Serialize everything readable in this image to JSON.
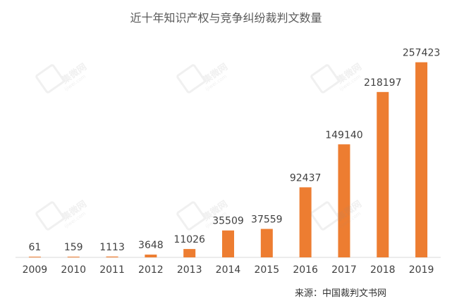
{
  "chart_data": {
    "type": "bar",
    "title": "近十年知识产权与竞争纠纷裁判文数量",
    "categories": [
      "2009",
      "2010",
      "2011",
      "2012",
      "2013",
      "2014",
      "2015",
      "2016",
      "2017",
      "2018",
      "2019"
    ],
    "values": [
      61,
      159,
      1113,
      3648,
      11026,
      35509,
      37559,
      92437,
      149140,
      218197,
      257423
    ],
    "data_labels": [
      "61",
      "159",
      "1113",
      "3648",
      "11026",
      "35509",
      "37559",
      "92437",
      "149140",
      "218197",
      "257423"
    ],
    "xlabel": "",
    "ylabel": "",
    "ylim": [
      0,
      270000
    ],
    "grid": false,
    "legend": "none",
    "colors": {
      "bar": "#ED7D31",
      "axis": "#D9D9D9",
      "text": "#404040"
    }
  },
  "source": "来源：中国裁判文书网",
  "watermark": {
    "brand": "集微网",
    "domain": "ijiwei.com"
  }
}
